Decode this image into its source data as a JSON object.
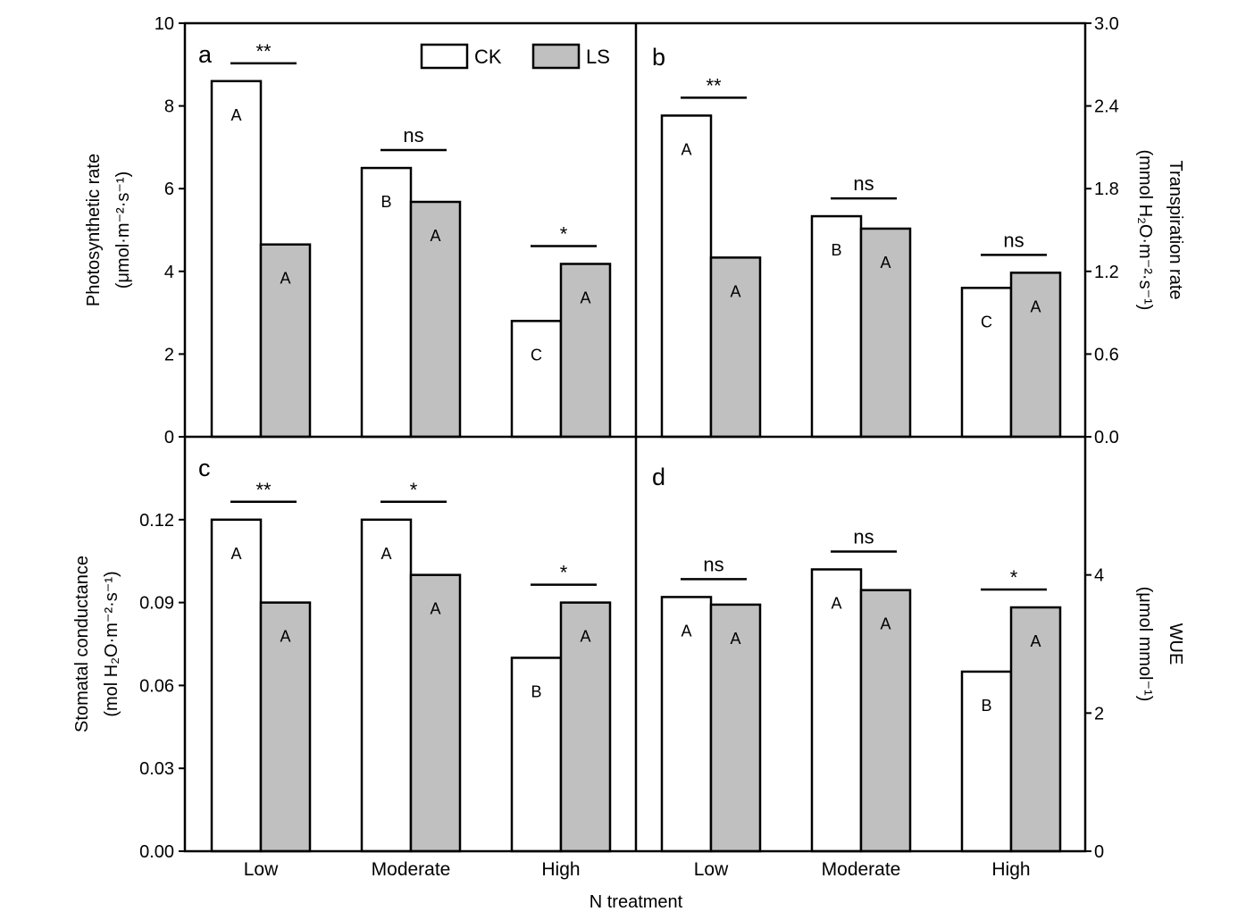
{
  "chart_data": {
    "type": "bar",
    "x_label": "N treatment",
    "categories": [
      "Low",
      "Moderate",
      "High"
    ],
    "legend": [
      {
        "name": "CK",
        "color": "#ffffff"
      },
      {
        "name": "LS",
        "color": "#c0c0c0"
      }
    ],
    "panels": [
      {
        "id": "a",
        "ylabel_line1": "Photosynthetic rate",
        "ylabel_line2": "(μmol·m⁻²·s⁻¹)",
        "axis_side": "left",
        "ylim": [
          0,
          10
        ],
        "yticks": [
          "0",
          "2",
          "4",
          "6",
          "8",
          "10"
        ],
        "series": [
          {
            "name": "CK",
            "values": [
              8.6,
              6.5,
              2.8
            ],
            "letters": [
              "A",
              "B",
              "C"
            ]
          },
          {
            "name": "LS",
            "values": [
              4.65,
              5.68,
              4.18
            ],
            "letters": [
              "A",
              "A",
              "A"
            ]
          }
        ],
        "significance": [
          "**",
          "ns",
          "*"
        ]
      },
      {
        "id": "b",
        "ylabel_line1": "Transpiration rate",
        "ylabel_line2": "(mmol H₂O·m⁻²·s⁻¹)",
        "axis_side": "right",
        "ylim": [
          0,
          3
        ],
        "yticks": [
          "0.0",
          "0.6",
          "1.2",
          "1.8",
          "2.4",
          "3.0"
        ],
        "series": [
          {
            "name": "CK",
            "values": [
              2.33,
              1.6,
              1.08
            ],
            "letters": [
              "A",
              "B",
              "C"
            ]
          },
          {
            "name": "LS",
            "values": [
              1.3,
              1.51,
              1.19
            ],
            "letters": [
              "A",
              "A",
              "A"
            ]
          }
        ],
        "significance": [
          "**",
          "ns",
          "ns"
        ]
      },
      {
        "id": "c",
        "ylabel_line1": "Stomatal conductance",
        "ylabel_line2": "(mol H₂O·m⁻²·s⁻¹)",
        "axis_side": "left",
        "ylim": [
          0,
          0.15
        ],
        "yticks": [
          "0.00",
          "0.03",
          "0.06",
          "0.09",
          "0.12"
        ],
        "series": [
          {
            "name": "CK",
            "values": [
              0.12,
              0.12,
              0.07
            ],
            "letters": [
              "A",
              "A",
              "B"
            ]
          },
          {
            "name": "LS",
            "values": [
              0.09,
              0.1,
              0.09
            ],
            "letters": [
              "A",
              "A",
              "A"
            ]
          }
        ],
        "significance": [
          "**",
          "*",
          "*"
        ]
      },
      {
        "id": "d",
        "ylabel_line1": "WUE",
        "ylabel_line2": "(μmol mmol⁻¹)",
        "axis_side": "right",
        "ylim": [
          0,
          6
        ],
        "yticks": [
          "0",
          "2",
          "4"
        ],
        "series": [
          {
            "name": "CK",
            "values": [
              3.68,
              4.08,
              2.6
            ],
            "letters": [
              "A",
              "A",
              "B"
            ]
          },
          {
            "name": "LS",
            "values": [
              3.57,
              3.78,
              3.53
            ],
            "letters": [
              "A",
              "A",
              "A"
            ]
          }
        ],
        "significance": [
          "ns",
          "ns",
          "*"
        ]
      }
    ]
  }
}
